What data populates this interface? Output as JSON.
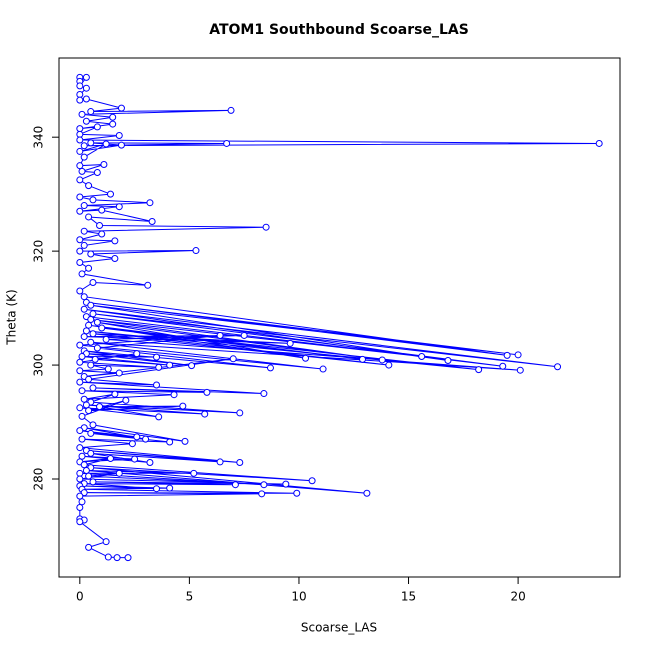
{
  "chart_data": {
    "type": "line",
    "markers": true,
    "title": "ATOM1 Southbound Scoarse_LAS",
    "x_label": "Scoarse_LAS",
    "y_label": "Theta (K)",
    "color": "#0000ff",
    "x": [
      0,
      0,
      0.3,
      0,
      0.3,
      0,
      0,
      0.3,
      1.9,
      0.5,
      6.9,
      0.1,
      1.5,
      0.3,
      1.5,
      0,
      0.8,
      0,
      1.8,
      0,
      23.7,
      0.2,
      6.7,
      0.5,
      1.9,
      0,
      1.2,
      0.2,
      0,
      1.1,
      0.1,
      0.8,
      0,
      0.4,
      1.4,
      0,
      0.6,
      3.2,
      0.2,
      1.8,
      0,
      1,
      3.3,
      0.4,
      0.9,
      8.5,
      0.2,
      1,
      0,
      1.6,
      0.2,
      0,
      5.3,
      0.5,
      1.6,
      0,
      0.4,
      0.1,
      3.1,
      0.6,
      0,
      0.2,
      19.5,
      0.3,
      20,
      0.5,
      16.8,
      0.2,
      21.8,
      0.6,
      19.3,
      0.3,
      15.6,
      0.5,
      13.8,
      0.8,
      10.3,
      0.4,
      12.9,
      1,
      18.2,
      0.3,
      14.1,
      0.6,
      9.6,
      0.2,
      7.5,
      1.2,
      20.1,
      0.5,
      11.1,
      0,
      6.4,
      0.8,
      8.7,
      0.2,
      5.1,
      0.3,
      3.5,
      0.1,
      4.1,
      0.7,
      2.6,
      0,
      3.6,
      0.5,
      1.3,
      0,
      1.8,
      0.2,
      7,
      0.4,
      3.5,
      0,
      8.4,
      0.6,
      5.8,
      0.1,
      4.3,
      0.2,
      1.6,
      0.5,
      7.3,
      0.3,
      5.7,
      0,
      3.6,
      0.9,
      4.7,
      0.4,
      2.1,
      0.1,
      0.6,
      4.8,
      0.2,
      3,
      0,
      2.6,
      0.5,
      4.1,
      0.1,
      2.4,
      0,
      7.3,
      0.3,
      6.4,
      0.5,
      3.2,
      0.1,
      2.5,
      0,
      1.4,
      0.2,
      10.6,
      0.5,
      13.1,
      0.3,
      5.2,
      0,
      8.4,
      0.4,
      1.8,
      0,
      9.4,
      0.6,
      7.1,
      0.2,
      3.5,
      0,
      4.1,
      0.1,
      9.9,
      0.2,
      8.3,
      0,
      0.1,
      0,
      0,
      0.2,
      0,
      1.2,
      0.4,
      1.3,
      1.7,
      2.2
    ],
    "values": [
      350.5,
      349.8,
      350.5,
      349,
      348.6,
      347.5,
      346.5,
      346.7,
      345.1,
      344.5,
      344.7,
      344,
      343.5,
      342.8,
      342.3,
      341.5,
      341.8,
      340.5,
      340.3,
      339.5,
      338.9,
      338.5,
      338.9,
      339,
      338.6,
      337.5,
      338.8,
      336.5,
      335,
      335.2,
      334,
      333.8,
      332.5,
      331.5,
      330,
      329.5,
      329,
      328.5,
      328,
      327.8,
      327,
      327.2,
      325.2,
      326,
      324.5,
      324.2,
      323.5,
      323,
      322,
      321.8,
      321,
      320,
      320.1,
      319.5,
      318.7,
      318,
      317,
      316,
      314,
      314.5,
      313,
      312,
      301.7,
      311,
      301.8,
      310.5,
      300.8,
      309.8,
      299.7,
      309,
      299.8,
      308.5,
      301.5,
      308,
      300.9,
      307.5,
      301.2,
      307,
      301,
      306.5,
      299.2,
      306,
      300,
      305.5,
      303.8,
      305,
      305.2,
      304.5,
      299.1,
      304,
      299.3,
      303.5,
      305.2,
      303,
      299.5,
      302.5,
      299.9,
      302,
      301.4,
      301.5,
      300,
      301,
      302,
      300.5,
      299.6,
      300,
      299.3,
      299,
      298.6,
      298,
      301.1,
      297.5,
      296.5,
      297,
      295,
      296,
      295.2,
      295.5,
      294.8,
      294,
      294.9,
      293.5,
      291.6,
      293,
      291.4,
      292.5,
      290.9,
      292.7,
      292.8,
      292,
      293.8,
      291,
      289.5,
      286.6,
      289,
      287,
      288.5,
      287.4,
      288,
      286.5,
      287,
      286.2,
      285.5,
      282.9,
      285,
      283,
      284.5,
      282.9,
      284,
      283.5,
      283,
      283.6,
      282.5,
      279.7,
      282,
      277.5,
      281.5,
      281,
      281,
      279,
      280.5,
      281,
      280,
      279.1,
      279.5,
      279,
      279.2,
      278.3,
      278.8,
      278.4,
      278.2,
      277.5,
      277.6,
      277.4,
      277,
      276,
      275,
      273,
      272.8,
      272.5,
      269,
      268,
      266.3,
      266.2,
      266.2
    ],
    "xlim": [
      -0.95,
      24.65
    ],
    "ylim": [
      262.8,
      353.9
    ],
    "xticks": [
      0,
      5,
      10,
      15,
      20
    ],
    "yticks": [
      280,
      300,
      320,
      340
    ]
  }
}
